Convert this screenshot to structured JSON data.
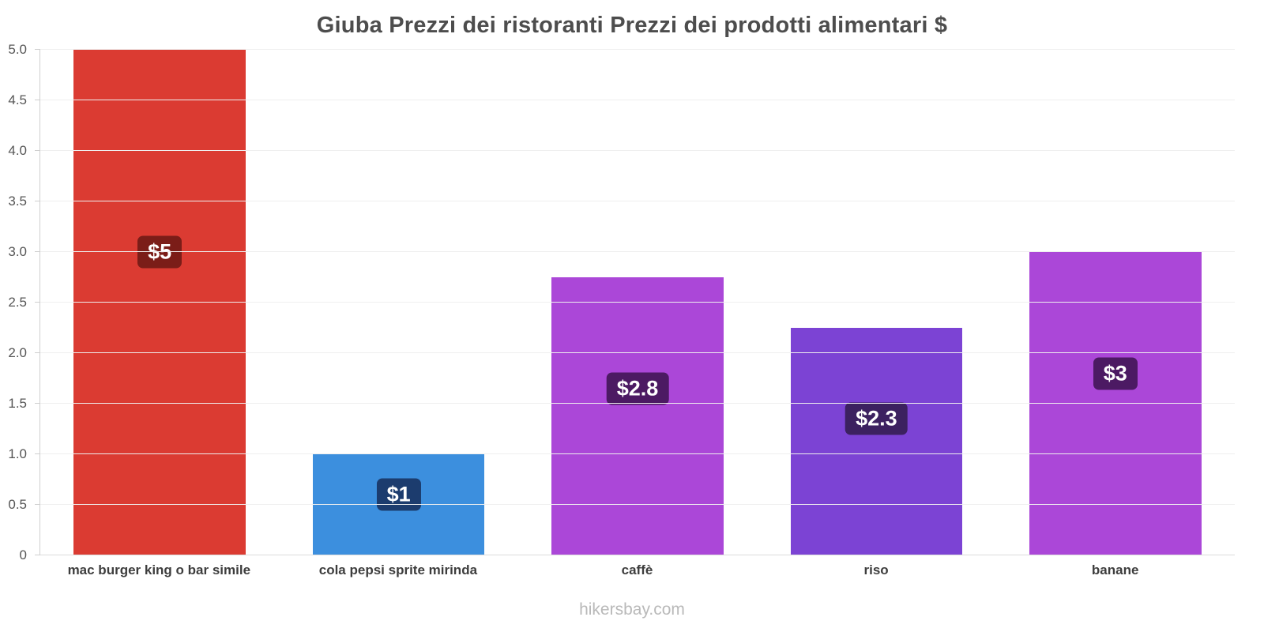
{
  "chart": {
    "title": "Giuba Prezzi dei ristoranti Prezzi dei prodotti alimentari $",
    "footer": "hikersbay.com"
  },
  "chart_data": {
    "type": "bar",
    "title": "Giuba Prezzi dei ristoranti Prezzi dei prodotti alimentari $",
    "categories": [
      "mac burger king o bar simile",
      "cola pepsi sprite mirinda",
      "caffè",
      "riso",
      "banane"
    ],
    "values": [
      5,
      1,
      2.75,
      2.25,
      3
    ],
    "value_labels": [
      "$5",
      "$1",
      "$2.8",
      "$2.3",
      "$3"
    ],
    "bar_colors": [
      "#db3b32",
      "#3c8fde",
      "#ab47d8",
      "#7c43d4",
      "#ab47d8"
    ],
    "badge_colors": [
      "#7b1d18",
      "#1c3c6e",
      "#4c1a63",
      "#3c2160",
      "#4c1a63"
    ],
    "xlabel": "",
    "ylabel": "",
    "ylim": [
      0,
      5
    ],
    "ytick_step": 0.5,
    "ytick_labels": [
      "0",
      "0.5",
      "1.0",
      "1.5",
      "2.0",
      "2.5",
      "3.0",
      "3.5",
      "4.0",
      "4.5",
      "5.0"
    ],
    "grid": true,
    "legend": "none",
    "footer": "hikersbay.com"
  }
}
